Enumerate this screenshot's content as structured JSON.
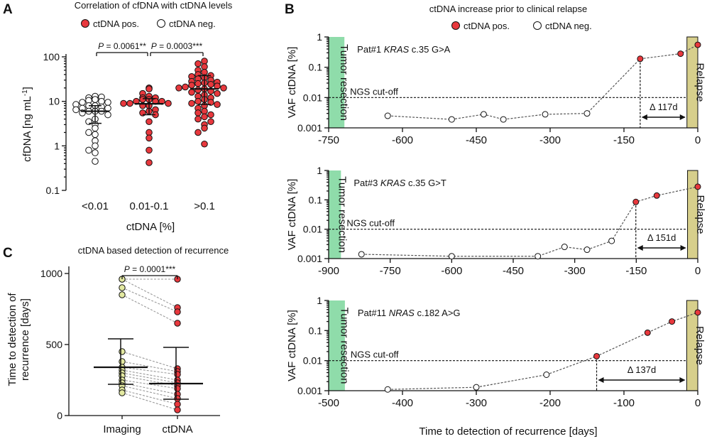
{
  "panel_letters": {
    "a": "A",
    "b": "B",
    "c": "C"
  },
  "colors": {
    "pos": "#e8383d",
    "neg": "#ffffff",
    "imaging": "#e3e9a1",
    "resection": "#8fdcaa",
    "relapse": "#d7cf8c"
  },
  "chart_data": [
    {
      "id": "A",
      "type": "scatter",
      "title": "Correlation of cfDNA with ctDNA levels",
      "legend": {
        "pos": "ctDNA pos.",
        "neg": "ctDNA neg."
      },
      "ylabel_main": "cfDNA [ng mL",
      "ylabel_sup": "-1",
      "ylabel_end": "]",
      "xlabel": "ctDNA [%]",
      "yscale": "log",
      "ylim": [
        0.1,
        100
      ],
      "yticks": [
        0.1,
        1,
        10,
        100
      ],
      "ytick_labels": [
        "0.1",
        "1",
        "10",
        "100"
      ],
      "categories": [
        "<0.01",
        "0.01-0.1",
        ">0.1"
      ],
      "groups": [
        {
          "status": "neg",
          "median": 6.0,
          "q1": 3.2,
          "q3": 8.0,
          "values": [
            13,
            12,
            12.5,
            11,
            10.5,
            10,
            9.5,
            9.5,
            8.5,
            8,
            8,
            7.5,
            7,
            7,
            6.5,
            6,
            6,
            6,
            5.5,
            5,
            4,
            3.5,
            3,
            2.5,
            2,
            1.8,
            1.3,
            1.0,
            0.8,
            0.7,
            0.45
          ]
        },
        {
          "status": "pos",
          "median": 8.8,
          "q1": 5.0,
          "q3": 11.5,
          "values": [
            20,
            19,
            15,
            13,
            12,
            12,
            11,
            11,
            10,
            10,
            10,
            9,
            9,
            9,
            8,
            8,
            6.5,
            6,
            5.5,
            5,
            3.5,
            2.0,
            1.5,
            0.8,
            0.42
          ]
        },
        {
          "status": "pos",
          "median": 19,
          "q1": 8.5,
          "q3": 38,
          "values": [
            80,
            70,
            60,
            50,
            45,
            40,
            38,
            36,
            34,
            32,
            30,
            28,
            27,
            26,
            25,
            24,
            23,
            22,
            21,
            20,
            20,
            19,
            18,
            17,
            16,
            15,
            14,
            13,
            12,
            11,
            10,
            9.5,
            9,
            8.5,
            8,
            7,
            6,
            5.5,
            5,
            4.5,
            4,
            3.5,
            3,
            2.5,
            2.0,
            1.1
          ]
        }
      ],
      "brackets": [
        {
          "from": 0,
          "to": 1,
          "p": "P",
          "label": " = 0.0061**"
        },
        {
          "from": 1,
          "to": 2,
          "p": "P",
          "label": " = 0.0003***"
        }
      ]
    },
    {
      "id": "C",
      "type": "paired-scatter",
      "title": "ctDNA based detection of recurrence",
      "ylabel1": "Time to detection of",
      "ylabel2": "recurrence [days]",
      "ylim": [
        0,
        1050
      ],
      "yticks": [
        0,
        500,
        1000
      ],
      "ytick_labels": [
        "0",
        "500",
        "1000"
      ],
      "categories": [
        "Imaging",
        "ctDNA"
      ],
      "pairs": [
        [
          960,
          960
        ],
        [
          960,
          760
        ],
        [
          900,
          730
        ],
        [
          850,
          650
        ],
        [
          450,
          330
        ],
        [
          380,
          310
        ],
        [
          340,
          290
        ],
        [
          320,
          250
        ],
        [
          300,
          230
        ],
        [
          280,
          210
        ],
        [
          250,
          190
        ],
        [
          230,
          150
        ],
        [
          210,
          120
        ],
        [
          180,
          80
        ],
        [
          160,
          40
        ]
      ],
      "stats": [
        {
          "mean": 340,
          "low": 220,
          "high": 540
        },
        {
          "mean": 225,
          "low": 115,
          "high": 480
        }
      ],
      "bracket": {
        "p": "P",
        "label": " = 0.0001***"
      }
    },
    {
      "id": "B",
      "type": "line",
      "title": "ctDNA increase prior to clinical relapse",
      "legend": {
        "pos": "ctDNA pos.",
        "neg": "ctDNA neg."
      },
      "ylabel": "VAF ctDNA [%]",
      "xlabel": "Time to detection of recurrence [days]",
      "yscale": "log",
      "ylim": [
        0.001,
        1
      ],
      "yticks": [
        0.001,
        0.01,
        0.1,
        1
      ],
      "ytick_labels": [
        "0.001",
        "0.01",
        "0.1",
        "1"
      ],
      "cutoff_value": 0.01,
      "cutoff_label": "NGS cut-off",
      "resection_label": "Tumor resection",
      "relapse_label": "Relapse",
      "subplots": [
        {
          "patient": "Pat#1 ",
          "gene": "KRAS",
          "mutation": " c.35 G>A",
          "xlim": [
            -750,
            0
          ],
          "xticks": [
            -750,
            -600,
            -450,
            -300,
            -150,
            0
          ],
          "xtick_labels": [
            "-750",
            "-600",
            "-450",
            "-300",
            "-150",
            "0"
          ],
          "resection_end": -718,
          "relapse_start": -22,
          "delta": "Δ 117d",
          "delta_from": -117,
          "points": [
            [
              -630,
              0.0025,
              "neg"
            ],
            [
              -500,
              0.0019,
              "neg"
            ],
            [
              -435,
              0.0028,
              "neg"
            ],
            [
              -395,
              0.0019,
              "neg"
            ],
            [
              -310,
              0.0028,
              "neg"
            ],
            [
              -225,
              0.003,
              "neg"
            ],
            [
              -117,
              0.19,
              "pos"
            ],
            [
              -35,
              0.28,
              "pos"
            ],
            [
              0,
              0.55,
              "pos"
            ]
          ]
        },
        {
          "patient": "Pat#3 ",
          "gene": "KRAS",
          "mutation": " c.35 G>T",
          "xlim": [
            -900,
            0
          ],
          "xticks": [
            -900,
            -750,
            -600,
            -450,
            -300,
            -150,
            0
          ],
          "xtick_labels": [
            "-900",
            "-750",
            "-600",
            "-450",
            "-300",
            "-150",
            "0"
          ],
          "resection_end": -870,
          "relapse_start": -25,
          "delta": "Δ 151d",
          "delta_from": -151,
          "points": [
            [
              -820,
              0.0014,
              "neg"
            ],
            [
              -600,
              0.0012,
              "neg"
            ],
            [
              -390,
              0.0012,
              "neg"
            ],
            [
              -325,
              0.0025,
              "neg"
            ],
            [
              -270,
              0.002,
              "neg"
            ],
            [
              -210,
              0.004,
              "neg"
            ],
            [
              -151,
              0.085,
              "pos"
            ],
            [
              -100,
              0.14,
              "pos"
            ],
            [
              0,
              0.28,
              "pos"
            ]
          ]
        },
        {
          "patient": "Pat#11 ",
          "gene": "NRAS",
          "mutation": " c.182 A>G",
          "xlim": [
            -500,
            0
          ],
          "xticks": [
            -500,
            -400,
            -300,
            -200,
            -100,
            0
          ],
          "xtick_labels": [
            "-500",
            "-400",
            "-300",
            "-200",
            "-100",
            "0"
          ],
          "resection_end": -478,
          "relapse_start": -15,
          "delta": "Δ 137d",
          "delta_from": -137,
          "points": [
            [
              -420,
              0.0011,
              "neg"
            ],
            [
              -300,
              0.0013,
              "neg"
            ],
            [
              -205,
              0.0034,
              "neg"
            ],
            [
              -137,
              0.014,
              "pos"
            ],
            [
              -68,
              0.085,
              "pos"
            ],
            [
              -35,
              0.2,
              "pos"
            ],
            [
              0,
              0.4,
              "pos"
            ]
          ]
        }
      ]
    }
  ]
}
